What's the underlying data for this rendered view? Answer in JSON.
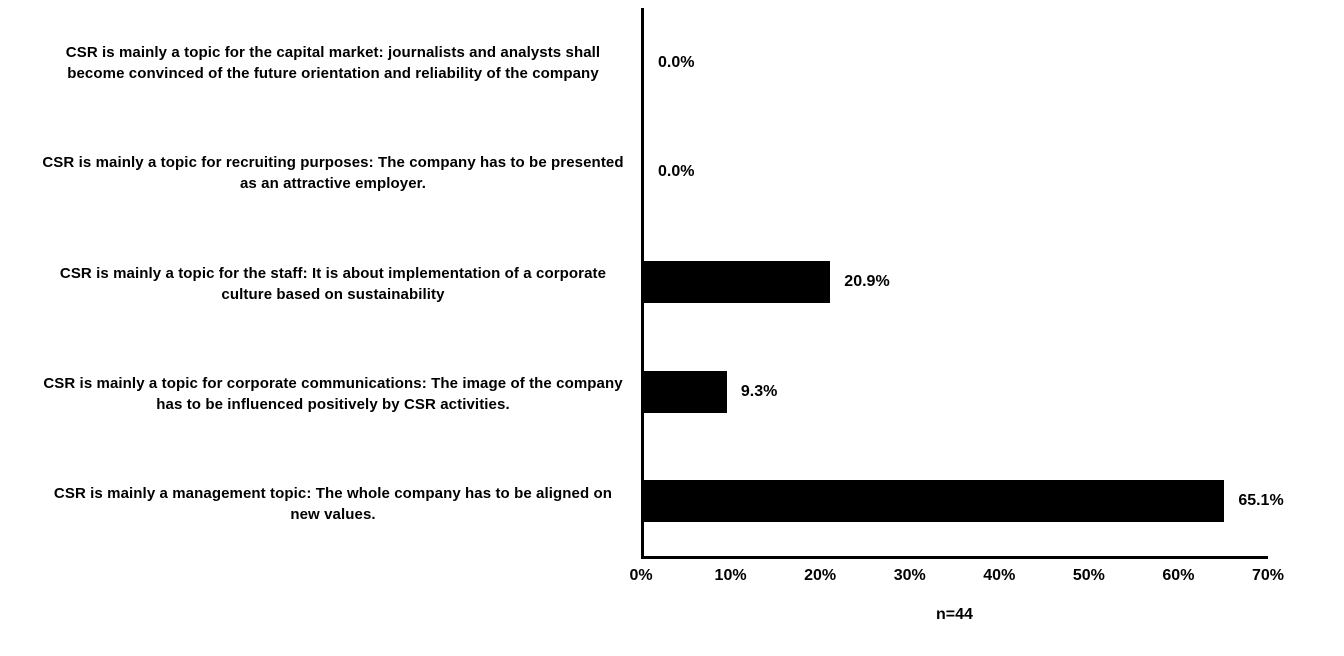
{
  "chart_data": {
    "type": "bar",
    "orientation": "horizontal",
    "title": "",
    "note": "n=44",
    "xlabel": "",
    "ylabel": "",
    "xlim": [
      0,
      70
    ],
    "x_ticks": [
      "0%",
      "10%",
      "20%",
      "30%",
      "40%",
      "50%",
      "60%",
      "70%"
    ],
    "grid": "off",
    "bar_color": "#000000",
    "background_color": "#ffffff",
    "rows": [
      {
        "label": "CSR is mainly a topic for the capital market: journalists and analysts shall become convinced of the future orientation and reliability of the company",
        "value": 0.0,
        "value_label": "0.0%"
      },
      {
        "label": "CSR is mainly a topic for recruiting purposes: The company has to be presented as an attractive employer.",
        "value": 0.0,
        "value_label": "0.0%"
      },
      {
        "label": "CSR is mainly a topic for the staff: It is about implementation of a corporate culture based on sustainability",
        "value": 20.9,
        "value_label": "20.9%"
      },
      {
        "label": "CSR is mainly a topic for corporate communications: The image of the company has to be influenced positively by CSR activities.",
        "value": 9.3,
        "value_label": "9.3%"
      },
      {
        "label": "CSR is mainly a management topic: The whole company has to be aligned on new values.",
        "value": 65.1,
        "value_label": "65.1%"
      }
    ]
  }
}
